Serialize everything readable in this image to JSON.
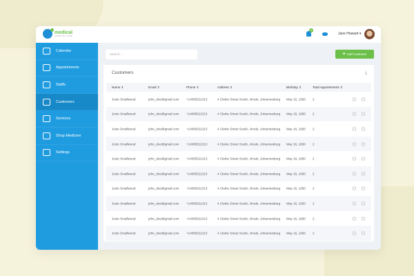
{
  "brand": {
    "name": "medical",
    "tagline": "HOSPITAL CARE"
  },
  "header": {
    "notification_count": "3",
    "user_name": "Jane Howard ▾"
  },
  "sidebar": {
    "items": [
      {
        "label": "Calendar"
      },
      {
        "label": "Appointments"
      },
      {
        "label": "Staffs"
      },
      {
        "label": "Customers",
        "active": true
      },
      {
        "label": "Services"
      },
      {
        "label": "Shop Medicine"
      },
      {
        "label": "Settings"
      }
    ]
  },
  "search": {
    "placeholder": "Search..."
  },
  "add_button": {
    "icon": "+",
    "label": "Add Customer"
  },
  "panel": {
    "title": "Customers",
    "download_icon": "⤓"
  },
  "table": {
    "columns": [
      "Name ⇕",
      "Email ⇕",
      "Phone ⇕",
      "Address ⇕",
      "Birthday ⇕",
      "Total Appointments ⇕"
    ],
    "rows": [
      [
        "Jozie Smallwood",
        "john_doe@gmail.com",
        "+14065511313",
        "4 Clarke Street South, Alrode, Johannesburg",
        "May 16, 1950",
        "2"
      ],
      [
        "Jozie Smallwood",
        "john_doe@gmail.com",
        "+14065511313",
        "4 Clarke Street South, Alrode, Johannesburg",
        "May 16, 1950",
        "2"
      ],
      [
        "Jozie Smallwood",
        "john_doe@gmail.com",
        "+14065511313",
        "4 Clarke Street South, Alrode, Johannesburg",
        "May 16, 1950",
        "2"
      ],
      [
        "Jozie Smallwood",
        "john_doe@gmail.com",
        "+14065511313",
        "4 Clarke Street South, Alrode, Johannesburg",
        "May 16, 1950",
        "2"
      ],
      [
        "Jozie Smallwood",
        "john_doe@gmail.com",
        "+14065511313",
        "4 Clarke Street South, Alrode, Johannesburg",
        "May 16, 1950",
        "2"
      ],
      [
        "Jozie Smallwood",
        "john_doe@gmail.com",
        "+14065511313",
        "4 Clarke Street South, Alrode, Johannesburg",
        "May 16, 1950",
        "2"
      ],
      [
        "Jozie Smallwood",
        "john_doe@gmail.com",
        "+14065511313",
        "4 Clarke Street South, Alrode, Johannesburg",
        "May 16, 1950",
        "2"
      ],
      [
        "Jozie Smallwood",
        "john_doe@gmail.com",
        "+14065511313",
        "4 Clarke Street South, Alrode, Johannesburg",
        "May 16, 1950",
        "2"
      ],
      [
        "Jozie Smallwood",
        "john_doe@gmail.com",
        "+14065511313",
        "4 Clarke Street South, Alrode, Johannesburg",
        "May 16, 1950",
        "2"
      ],
      [
        "Jozie Smallwood",
        "john_doe@gmail.com",
        "+14065511313",
        "4 Clarke Street South, Alrode, Johannesburg",
        "May 16, 1950",
        "2"
      ]
    ]
  },
  "colors": {
    "sidebar": "#1f9ce0",
    "sidebar_active": "#1788c8",
    "accent_green": "#6cc04a"
  }
}
